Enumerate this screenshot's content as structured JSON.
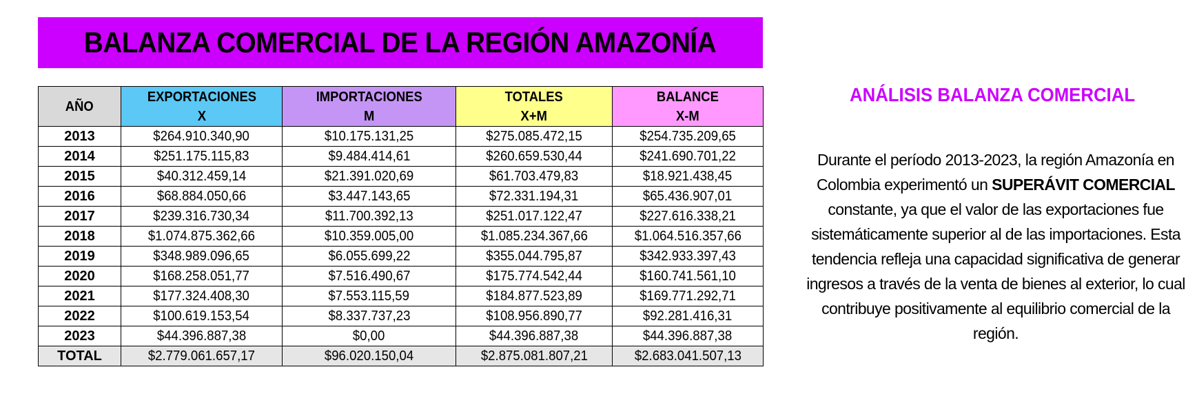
{
  "title": "BALANZA COMERCIAL DE LA REGIÓN AMAZONÍA",
  "table": {
    "headers": {
      "year": "AÑO",
      "exports": {
        "line1": "EXPORTACIONES",
        "line2": "X"
      },
      "imports": {
        "line1": "IMPORTACIONES",
        "line2": "M"
      },
      "totals": {
        "line1": "TOTALES",
        "line2": "X+M"
      },
      "balance": {
        "line1": "BALANCE",
        "line2": "X-M"
      }
    },
    "header_colors": {
      "year": "#d9d9d9",
      "exports": "#5bc8f5",
      "imports": "#c495f5",
      "totals": "#ffff8c",
      "balance": "#ff99ff"
    },
    "rows": [
      {
        "year": "2013",
        "exports": "$264.910.340,90",
        "imports": "$10.175.131,25",
        "totals": "$275.085.472,15",
        "balance": "$254.735.209,65"
      },
      {
        "year": "2014",
        "exports": "$251.175.115,83",
        "imports": "$9.484.414,61",
        "totals": "$260.659.530,44",
        "balance": "$241.690.701,22"
      },
      {
        "year": "2015",
        "exports": "$40.312.459,14",
        "imports": "$21.391.020,69",
        "totals": "$61.703.479,83",
        "balance": "$18.921.438,45"
      },
      {
        "year": "2016",
        "exports": "$68.884.050,66",
        "imports": "$3.447.143,65",
        "totals": "$72.331.194,31",
        "balance": "$65.436.907,01"
      },
      {
        "year": "2017",
        "exports": "$239.316.730,34",
        "imports": "$11.700.392,13",
        "totals": "$251.017.122,47",
        "balance": "$227.616.338,21"
      },
      {
        "year": "2018",
        "exports": "$1.074.875.362,66",
        "imports": "$10.359.005,00",
        "totals": "$1.085.234.367,66",
        "balance": "$1.064.516.357,66"
      },
      {
        "year": "2019",
        "exports": "$348.989.096,65",
        "imports": "$6.055.699,22",
        "totals": "$355.044.795,87",
        "balance": "$342.933.397,43"
      },
      {
        "year": "2020",
        "exports": "$168.258.051,77",
        "imports": "$7.516.490,67",
        "totals": "$175.774.542,44",
        "balance": "$160.741.561,10"
      },
      {
        "year": "2021",
        "exports": "$177.324.408,30",
        "imports": "$7.553.115,59",
        "totals": "$184.877.523,89",
        "balance": "$169.771.292,71"
      },
      {
        "year": "2022",
        "exports": "$100.619.153,54",
        "imports": "$8.337.737,23",
        "totals": "$108.956.890,77",
        "balance": "$92.281.416,31"
      },
      {
        "year": "2023",
        "exports": "$44.396.887,38",
        "imports": "$0,00",
        "totals": "$44.396.887,38",
        "balance": "$44.396.887,38"
      }
    ],
    "total": {
      "label": "TOTAL",
      "exports": "$2.779.061.657,17",
      "imports": "$96.020.150,04",
      "totals": "$2.875.081.807,21",
      "balance": "$2.683.041.507,13"
    }
  },
  "analysis": {
    "title": "ANÁLISIS BALANZA COMERCIAL",
    "text_before": "Durante el período 2013-2023, la región Amazonía en Colombia experimentó un ",
    "text_bold": "SUPERÁVIT COMERCIAL",
    "text_after": " constante, ya que el valor de las exportaciones fue sistemáticamente superior al de las importaciones. Esta tendencia refleja una capacidad significativa de generar ingresos a través de la venta de bienes al exterior, lo cual contribuye positivamente al equilibrio comercial de la región."
  },
  "colors": {
    "title_bar": "#cc00ff",
    "analysis_title": "#cc00ff"
  }
}
